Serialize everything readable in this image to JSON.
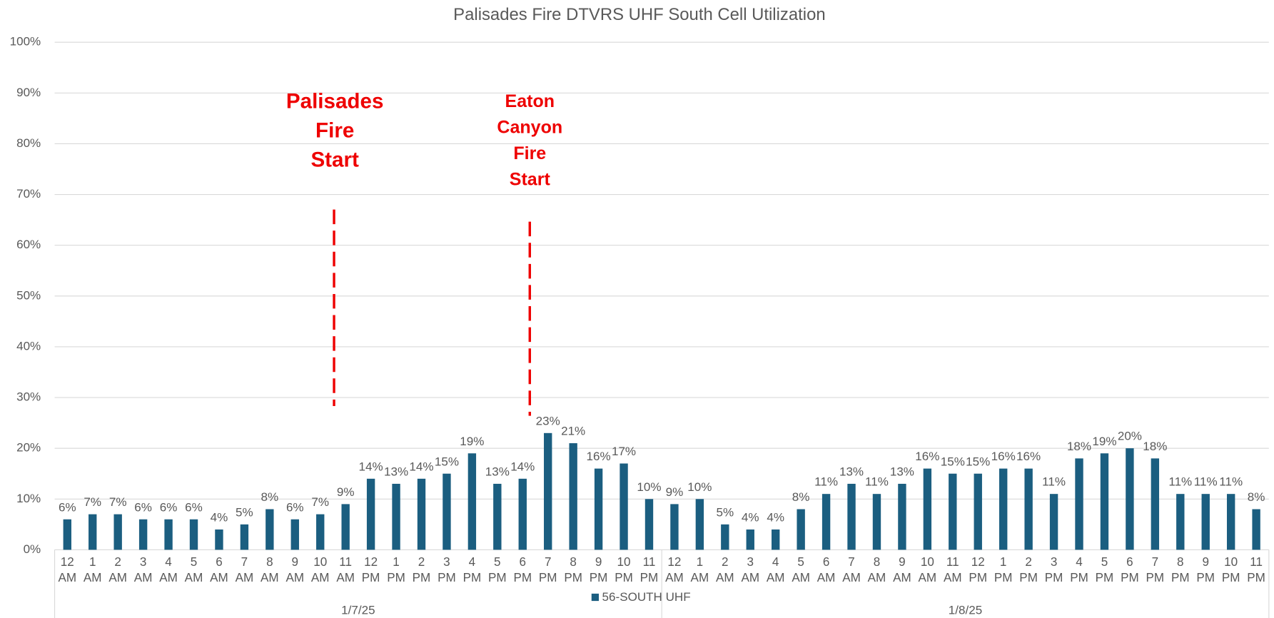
{
  "chart_data": {
    "type": "bar",
    "title": "Palisades Fire DTVRS UHF South Cell Utilization",
    "categories": [
      "12 AM",
      "1 AM",
      "2 AM",
      "3 AM",
      "4 AM",
      "5 AM",
      "6 AM",
      "7 AM",
      "8 AM",
      "9 AM",
      "10 AM",
      "11 AM",
      "12 PM",
      "1 PM",
      "2 PM",
      "3 PM",
      "4 PM",
      "5 PM",
      "6 PM",
      "7 PM",
      "8 PM",
      "9 PM",
      "10 PM",
      "11 PM",
      "12 AM",
      "1 AM",
      "2 AM",
      "3 AM",
      "4 AM",
      "5 AM",
      "6 AM",
      "7 AM",
      "8 AM",
      "9 AM",
      "10 AM",
      "11 AM",
      "12 PM",
      "1 PM",
      "2 PM",
      "3 PM",
      "4 PM",
      "5 PM",
      "6 PM",
      "7 PM",
      "8 PM",
      "9 PM",
      "10 PM",
      "11 PM"
    ],
    "groups": [
      "1/7/25",
      "1/8/25"
    ],
    "series": [
      {
        "name": "56-SOUTH UHF",
        "color": "#1b5e80",
        "values": [
          6,
          7,
          7,
          6,
          6,
          6,
          4,
          5,
          8,
          6,
          7,
          9,
          14,
          13,
          14,
          15,
          19,
          13,
          14,
          23,
          21,
          16,
          17,
          10,
          9,
          10,
          5,
          4,
          4,
          8,
          11,
          13,
          11,
          13,
          16,
          15,
          15,
          16,
          16,
          11,
          18,
          19,
          20,
          18,
          11,
          11,
          11,
          8
        ],
        "value_labels": [
          "6%",
          "7%",
          "7%",
          "6%",
          "6%",
          "6%",
          "4%",
          "5%",
          "8%",
          "6%",
          "7%",
          "9%",
          "14%",
          "13%",
          "14%",
          "15%",
          "19%",
          "13%",
          "14%",
          "23%",
          "21%",
          "16%",
          "17%",
          "10%",
          "9%",
          "10%",
          "5%",
          "4%",
          "4%",
          "8%",
          "11%",
          "13%",
          "11%",
          "13%",
          "16%",
          "15%",
          "15%",
          "16%",
          "16%",
          "11%",
          "18%",
          "19%",
          "20%",
          "18%",
          "11%",
          "11%",
          "11%",
          "8%"
        ]
      }
    ],
    "ylim": [
      0,
      100
    ],
    "yticks": [
      {
        "value": 0,
        "label": "0%"
      },
      {
        "value": 10,
        "label": "10%"
      },
      {
        "value": 20,
        "label": "20%"
      },
      {
        "value": 30,
        "label": "30%"
      },
      {
        "value": 40,
        "label": "40%"
      },
      {
        "value": 50,
        "label": "50%"
      },
      {
        "value": 60,
        "label": "60%"
      },
      {
        "value": 70,
        "label": "70%"
      },
      {
        "value": 80,
        "label": "80%"
      },
      {
        "value": 90,
        "label": "90%"
      },
      {
        "value": 100,
        "label": "100%"
      }
    ],
    "grid": true,
    "legend": "bottom",
    "annotations": [
      "Palisades Fire Start",
      "Eaton Canyon Fire Start"
    ]
  }
}
